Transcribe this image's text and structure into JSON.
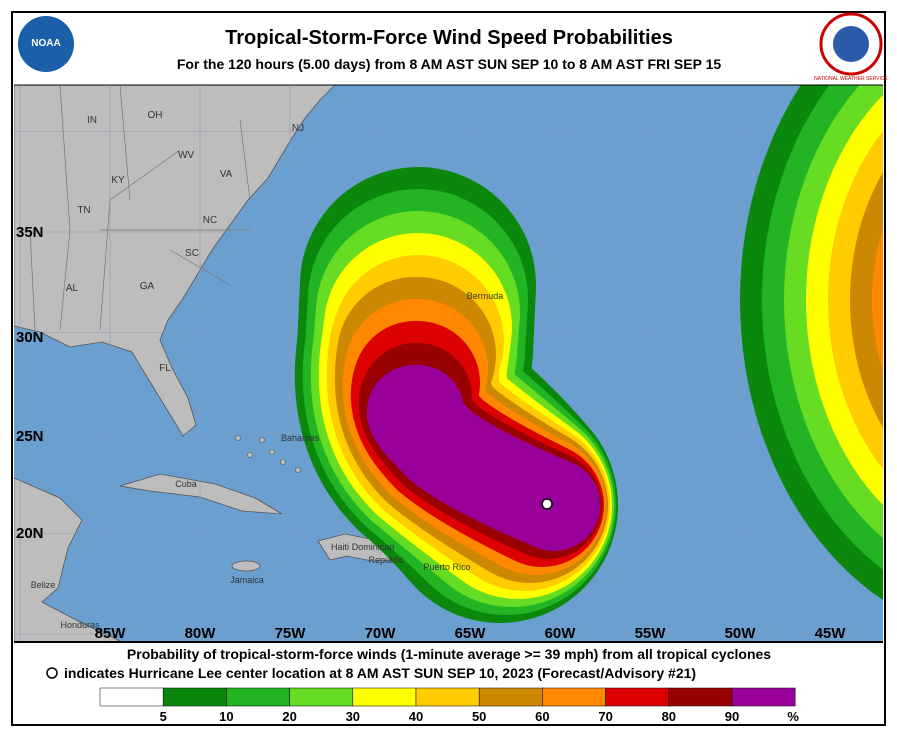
{
  "header": {
    "title": "Tropical-Storm-Force Wind Speed Probabilities",
    "subtitle": "For the 120 hours (5.00 days) from 8 AM AST SUN SEP 10 to 8 AM AST FRI SEP 15",
    "logo_left": "NOAA",
    "logo_right": "NATIONAL WEATHER SERVICE"
  },
  "map": {
    "longitudes": [
      "85W",
      "80W",
      "75W",
      "70W",
      "65W",
      "60W",
      "55W",
      "50W",
      "45W"
    ],
    "latitudes": [
      "35N",
      "30N",
      "25N",
      "20N"
    ],
    "places": [
      "IN",
      "OH",
      "NJ",
      "WV",
      "VA",
      "KY",
      "TN",
      "NC",
      "SC",
      "AL",
      "GA",
      "FL",
      "Bahamas",
      "Cuba",
      "Haiti",
      "Dominican",
      "Republic",
      "Jamaica",
      "Puerto Rico",
      "Belize",
      "Honduras",
      "Bermuda"
    ]
  },
  "footer": {
    "line1": "Probability of tropical-storm-force winds (1-minute average >= 39 mph) from all tropical cyclones",
    "line2": "indicates Hurricane Lee center location at 8 AM AST SUN SEP 10, 2023 (Forecast/Advisory #21)"
  },
  "legend": {
    "colors": [
      "#ffffff",
      "#0b870b",
      "#22b422",
      "#66dd22",
      "#ffff00",
      "#ffcc00",
      "#cc8800",
      "#ff8800",
      "#dd0000",
      "#990000",
      "#990099"
    ],
    "labels": [
      "5",
      "10",
      "20",
      "30",
      "40",
      "50",
      "60",
      "70",
      "80",
      "90"
    ],
    "unit": "%"
  }
}
